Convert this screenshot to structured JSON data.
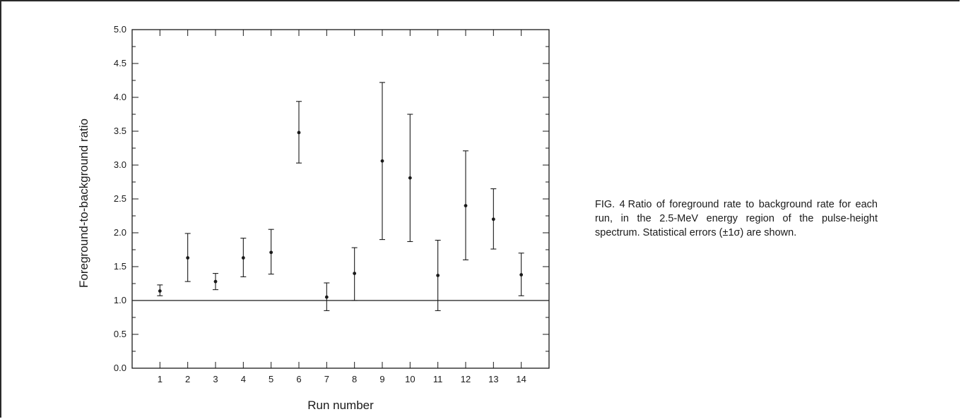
{
  "caption": {
    "label": "FIG. 4",
    "text": "Ratio of foreground rate to background rate for each run, in the 2.5-MeV energy region of the pulse-height spectrum. Statistical errors (±1σ) are shown."
  },
  "chart_data": {
    "type": "scatter",
    "xlabel": "Run number",
    "ylabel": "Foreground-to-background ratio",
    "xlim": [
      0,
      15
    ],
    "ylim": [
      0,
      5
    ],
    "x_ticks": [
      1,
      2,
      3,
      4,
      5,
      6,
      7,
      8,
      9,
      10,
      11,
      12,
      13,
      14
    ],
    "y_ticks": [
      "0.0",
      "0.5",
      "1.0",
      "1.5",
      "2.0",
      "2.5",
      "3.0",
      "3.5",
      "4.0",
      "4.5",
      "5.0"
    ],
    "reference_line": 1.0,
    "grid": false,
    "series": [
      {
        "x": [
          1,
          2,
          3,
          4,
          5,
          6,
          7,
          8,
          9,
          10,
          11,
          12,
          13,
          14
        ],
        "y": [
          1.14,
          1.63,
          1.28,
          1.63,
          1.71,
          3.48,
          1.05,
          1.4,
          3.06,
          2.81,
          1.37,
          2.4,
          2.2,
          1.38
        ],
        "err_low": [
          1.07,
          1.28,
          1.16,
          1.35,
          1.39,
          3.03,
          0.85,
          1.0,
          1.9,
          1.87,
          0.85,
          1.6,
          1.76,
          1.07
        ],
        "err_high": [
          1.23,
          1.99,
          1.4,
          1.92,
          2.05,
          3.94,
          1.26,
          1.78,
          4.22,
          3.75,
          1.89,
          3.21,
          2.65,
          1.7
        ]
      }
    ]
  }
}
